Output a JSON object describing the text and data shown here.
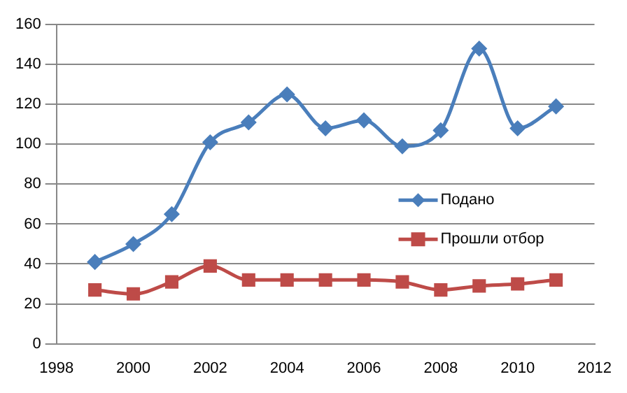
{
  "chart_data": {
    "type": "line",
    "x": [
      1999,
      2000,
      2001,
      2002,
      2003,
      2004,
      2005,
      2006,
      2007,
      2008,
      2009,
      2010,
      2011
    ],
    "series": [
      {
        "name": "Подано",
        "color": "#4a7ebb",
        "marker": "diamond",
        "values": [
          41,
          50,
          65,
          101,
          111,
          125,
          108,
          112,
          99,
          107,
          148,
          108,
          119
        ]
      },
      {
        "name": "Прошли отбор",
        "color": "#be4b48",
        "marker": "square",
        "values": [
          27,
          25,
          31,
          39,
          32,
          32,
          32,
          32,
          31,
          27,
          29,
          30,
          32
        ]
      }
    ],
    "xlim": [
      1998,
      2012
    ],
    "xticks": [
      1998,
      2000,
      2002,
      2004,
      2006,
      2008,
      2010,
      2012
    ],
    "ylim": [
      0,
      160
    ],
    "yticks": [
      0,
      20,
      40,
      60,
      80,
      100,
      120,
      140,
      160
    ],
    "grid": "y",
    "legend": "right"
  }
}
